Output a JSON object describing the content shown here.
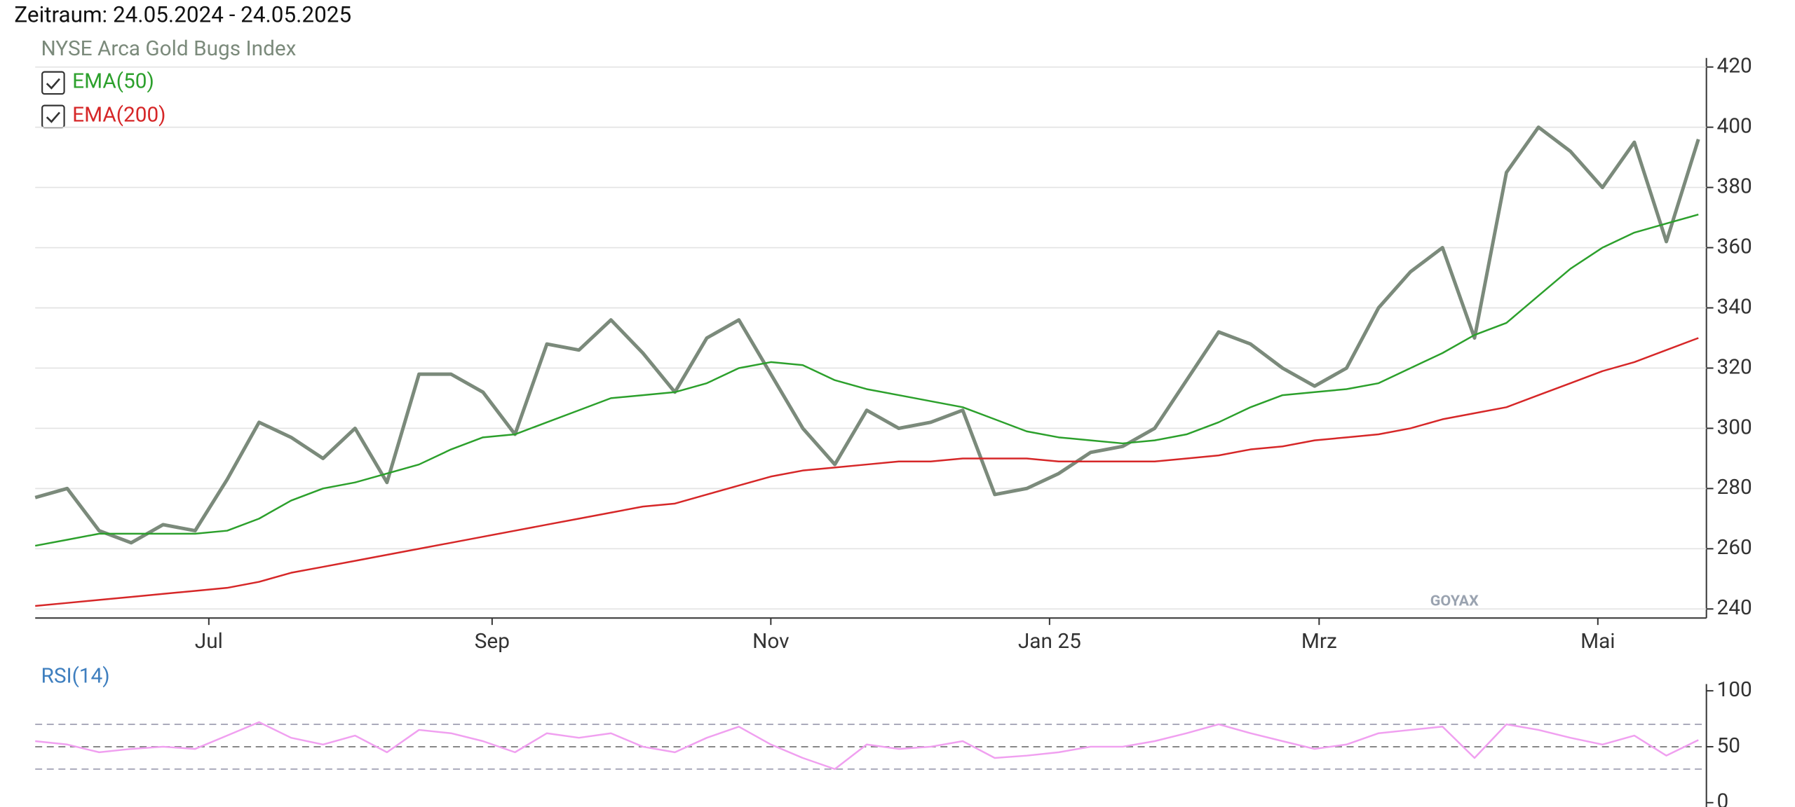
{
  "chart_data": [
    {
      "type": "line",
      "title": "Zeitraum: 24.05.2024 - 24.05.2025",
      "watermark": "GOYAX",
      "x": [
        0,
        7,
        14,
        21,
        28,
        35,
        42,
        49,
        56,
        63,
        70,
        77,
        84,
        91,
        98,
        105,
        112,
        119,
        126,
        133,
        140,
        147,
        154,
        161,
        168,
        175,
        182,
        189,
        196,
        203,
        210,
        217,
        224,
        231,
        238,
        245,
        252,
        259,
        266,
        273,
        280,
        287,
        294,
        301,
        308,
        315,
        322,
        329,
        336,
        343,
        350,
        357,
        364
      ],
      "xlim": [
        0,
        365
      ],
      "xticks": [
        {
          "value": 38,
          "label": "Jul"
        },
        {
          "value": 100,
          "label": "Sep"
        },
        {
          "value": 161,
          "label": "Nov"
        },
        {
          "value": 222,
          "label": "Jan 25"
        },
        {
          "value": 281,
          "label": "Mrz"
        },
        {
          "value": 342,
          "label": "Mai"
        }
      ],
      "ylim": [
        237,
        423
      ],
      "yticks": [
        240,
        260,
        280,
        300,
        320,
        340,
        360,
        380,
        400,
        420
      ],
      "grid": true,
      "series": [
        {
          "name": "NYSE Arca Gold Bugs Index",
          "color": "#7b8a7b",
          "values": [
            277,
            280,
            266,
            262,
            268,
            266,
            283,
            302,
            297,
            290,
            300,
            282,
            318,
            318,
            312,
            298,
            328,
            326,
            336,
            325,
            312,
            330,
            336,
            318,
            300,
            288,
            306,
            300,
            302,
            306,
            278,
            280,
            285,
            292,
            294,
            300,
            316,
            332,
            328,
            320,
            314,
            320,
            340,
            352,
            360,
            330,
            385,
            400,
            392,
            380,
            395,
            362,
            396
          ]
        },
        {
          "name": "EMA(50)",
          "color": "#2ca02c",
          "values": [
            261,
            263,
            265,
            265,
            265,
            265,
            266,
            270,
            276,
            280,
            282,
            285,
            288,
            293,
            297,
            298,
            302,
            306,
            310,
            311,
            312,
            315,
            320,
            322,
            321,
            316,
            313,
            311,
            309,
            307,
            303,
            299,
            297,
            296,
            295,
            296,
            298,
            302,
            307,
            311,
            312,
            313,
            315,
            320,
            325,
            331,
            335,
            344,
            353,
            360,
            365,
            368,
            371
          ]
        },
        {
          "name": "EMA(200)",
          "color": "#d62728",
          "values": [
            241,
            242,
            243,
            244,
            245,
            246,
            247,
            249,
            252,
            254,
            256,
            258,
            260,
            262,
            264,
            266,
            268,
            270,
            272,
            274,
            275,
            278,
            281,
            284,
            286,
            287,
            288,
            289,
            289,
            290,
            290,
            290,
            289,
            289,
            289,
            289,
            290,
            291,
            293,
            294,
            296,
            297,
            298,
            300,
            303,
            305,
            307,
            311,
            315,
            319,
            322,
            326,
            330
          ]
        }
      ]
    },
    {
      "type": "line",
      "x": [
        0,
        7,
        14,
        21,
        28,
        35,
        42,
        49,
        56,
        63,
        70,
        77,
        84,
        91,
        98,
        105,
        112,
        119,
        126,
        133,
        140,
        147,
        154,
        161,
        168,
        175,
        182,
        189,
        196,
        203,
        210,
        217,
        224,
        231,
        238,
        245,
        252,
        259,
        266,
        273,
        280,
        287,
        294,
        301,
        308,
        315,
        322,
        329,
        336,
        343,
        350,
        357,
        364
      ],
      "xlim": [
        0,
        365
      ],
      "ylim": [
        -7,
        106
      ],
      "yticks": [
        0,
        50,
        100
      ],
      "levels": [
        30,
        50,
        70
      ],
      "series": [
        {
          "name": "RSI(14)",
          "color": "#f0a0f0",
          "values": [
            55,
            52,
            45,
            48,
            50,
            48,
            60,
            72,
            58,
            52,
            60,
            45,
            65,
            62,
            55,
            45,
            62,
            58,
            62,
            50,
            45,
            58,
            68,
            52,
            40,
            30,
            52,
            48,
            50,
            55,
            40,
            42,
            45,
            50,
            50,
            55,
            62,
            70,
            62,
            55,
            48,
            52,
            62,
            65,
            68,
            40,
            70,
            65,
            58,
            52,
            60,
            42,
            56
          ]
        }
      ]
    }
  ]
}
